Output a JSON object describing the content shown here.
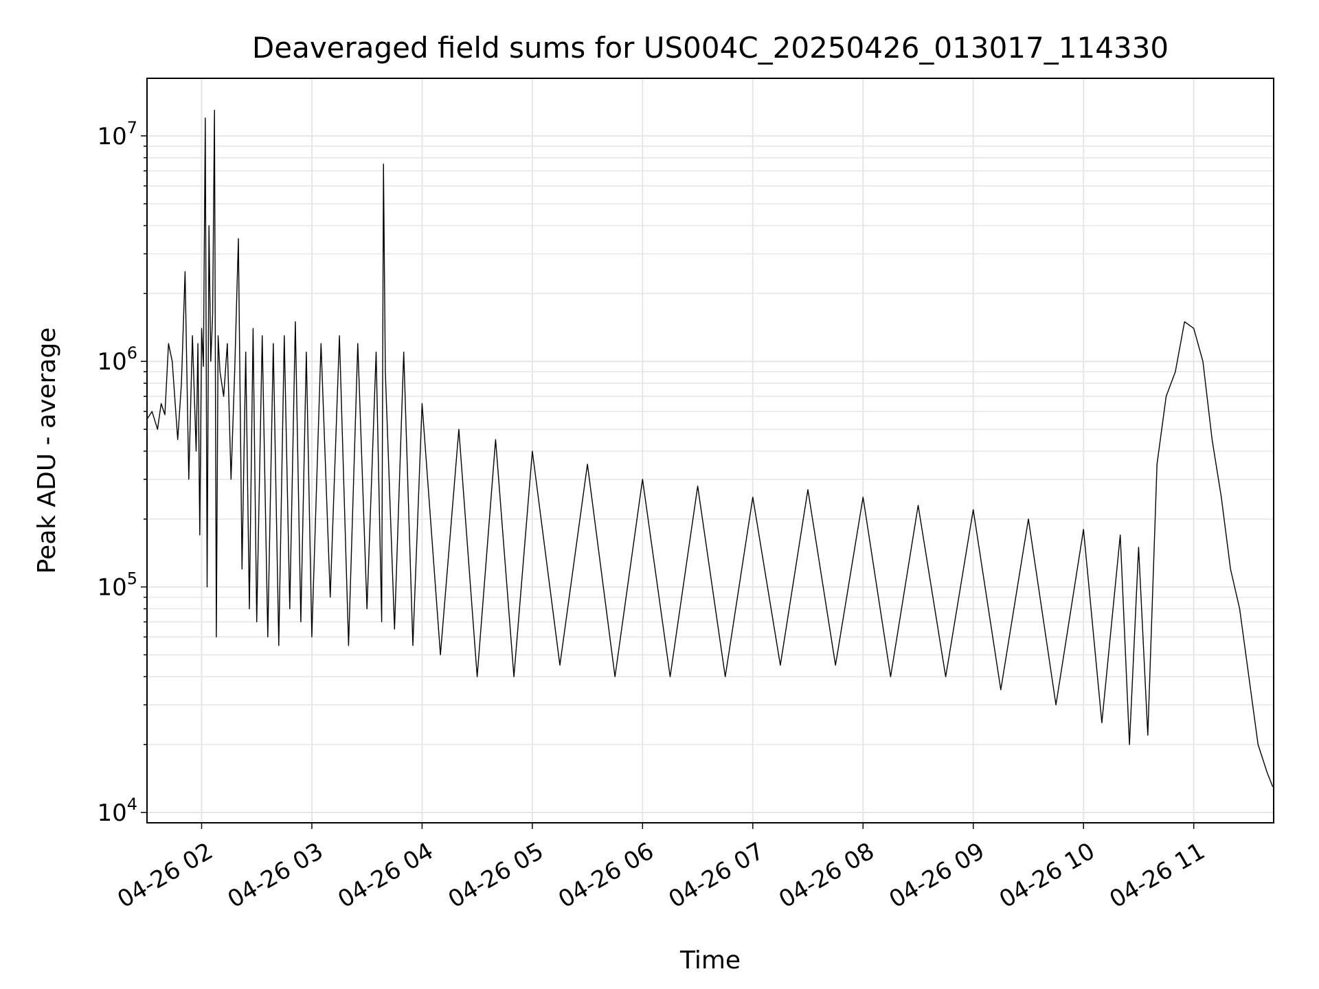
{
  "chart_data": {
    "type": "line",
    "title": "Deaveraged field sums for US004C_20250426_013017_114330",
    "xlabel": "Time",
    "ylabel": "Peak ADU - average",
    "y_scale": "log",
    "ylim": [
      9000,
      18000000
    ],
    "xlim": [
      "2025-04-26 01:30:17",
      "2025-04-26 11:43:30"
    ],
    "x_ticks": [
      "04-26 02",
      "04-26 03",
      "04-26 04",
      "04-26 05",
      "04-26 06",
      "04-26 07",
      "04-26 08",
      "04-26 09",
      "04-26 10",
      "04-26 11"
    ],
    "y_ticks": [
      {
        "value": 10000,
        "base": "10",
        "exp": "4"
      },
      {
        "value": 100000,
        "base": "10",
        "exp": "5"
      },
      {
        "value": 1000000,
        "base": "10",
        "exp": "6"
      },
      {
        "value": 10000000,
        "base": "10",
        "exp": "7"
      }
    ],
    "grid": true,
    "line_color": "#000000",
    "grid_color": "#e6e6e6",
    "series": [
      {
        "x": [
          "01:30",
          "01:33",
          "01:36",
          "01:38",
          "01:40",
          "01:42",
          "01:44",
          "01:47",
          "01:49",
          "01:51",
          "01:53",
          "01:55",
          "01:57",
          "01:58",
          "01:59",
          "02:00",
          "02:01",
          "02:02",
          "02:03",
          "02:04",
          "02:05",
          "02:06",
          "02:07",
          "02:08",
          "02:09",
          "02:10",
          "02:12",
          "02:14",
          "02:16",
          "02:18",
          "02:20",
          "02:22",
          "02:24",
          "02:26",
          "02:28",
          "02:30",
          "02:33",
          "02:36",
          "02:39",
          "02:42",
          "02:45",
          "02:48",
          "02:51",
          "02:54",
          "02:57",
          "03:00",
          "03:05",
          "03:10",
          "03:15",
          "03:20",
          "03:25",
          "03:30",
          "03:35",
          "03:38",
          "03:39",
          "03:40",
          "03:45",
          "03:50",
          "03:55",
          "04:00",
          "04:10",
          "04:20",
          "04:30",
          "04:40",
          "04:50",
          "05:00",
          "05:15",
          "05:30",
          "05:45",
          "06:00",
          "06:15",
          "06:30",
          "06:45",
          "07:00",
          "07:15",
          "07:30",
          "07:45",
          "08:00",
          "08:15",
          "08:30",
          "08:45",
          "09:00",
          "09:15",
          "09:30",
          "09:45",
          "10:00",
          "10:10",
          "10:20",
          "10:25",
          "10:30",
          "10:35",
          "10:40",
          "10:45",
          "10:50",
          "10:55",
          "11:00",
          "11:05",
          "11:10",
          "11:15",
          "11:20",
          "11:25",
          "11:30",
          "11:35",
          "11:40",
          "11:43"
        ],
        "y": [
          550000,
          600000,
          500000,
          650000,
          580000,
          1200000,
          1000000,
          450000,
          800000,
          2500000,
          300000,
          1300000,
          400000,
          1200000,
          170000,
          1400000,
          950000,
          12000000,
          100000,
          4000000,
          1000000,
          1600000,
          13000000,
          60000,
          1300000,
          900000,
          700000,
          1200000,
          300000,
          900000,
          3500000,
          120000,
          1100000,
          80000,
          1400000,
          70000,
          1300000,
          60000,
          1200000,
          55000,
          1300000,
          80000,
          1500000,
          70000,
          1100000,
          60000,
          1200000,
          90000,
          1300000,
          55000,
          1200000,
          80000,
          1100000,
          70000,
          7500000,
          900000,
          65000,
          1100000,
          55000,
          650000,
          50000,
          500000,
          40000,
          450000,
          40000,
          400000,
          45000,
          350000,
          40000,
          300000,
          40000,
          280000,
          40000,
          250000,
          45000,
          270000,
          45000,
          250000,
          40000,
          230000,
          40000,
          220000,
          35000,
          200000,
          30000,
          180000,
          25000,
          170000,
          20000,
          150000,
          22000,
          350000,
          700000,
          900000,
          1500000,
          1400000,
          1000000,
          450000,
          250000,
          120000,
          80000,
          40000,
          20000,
          15000,
          13000
        ]
      }
    ]
  }
}
